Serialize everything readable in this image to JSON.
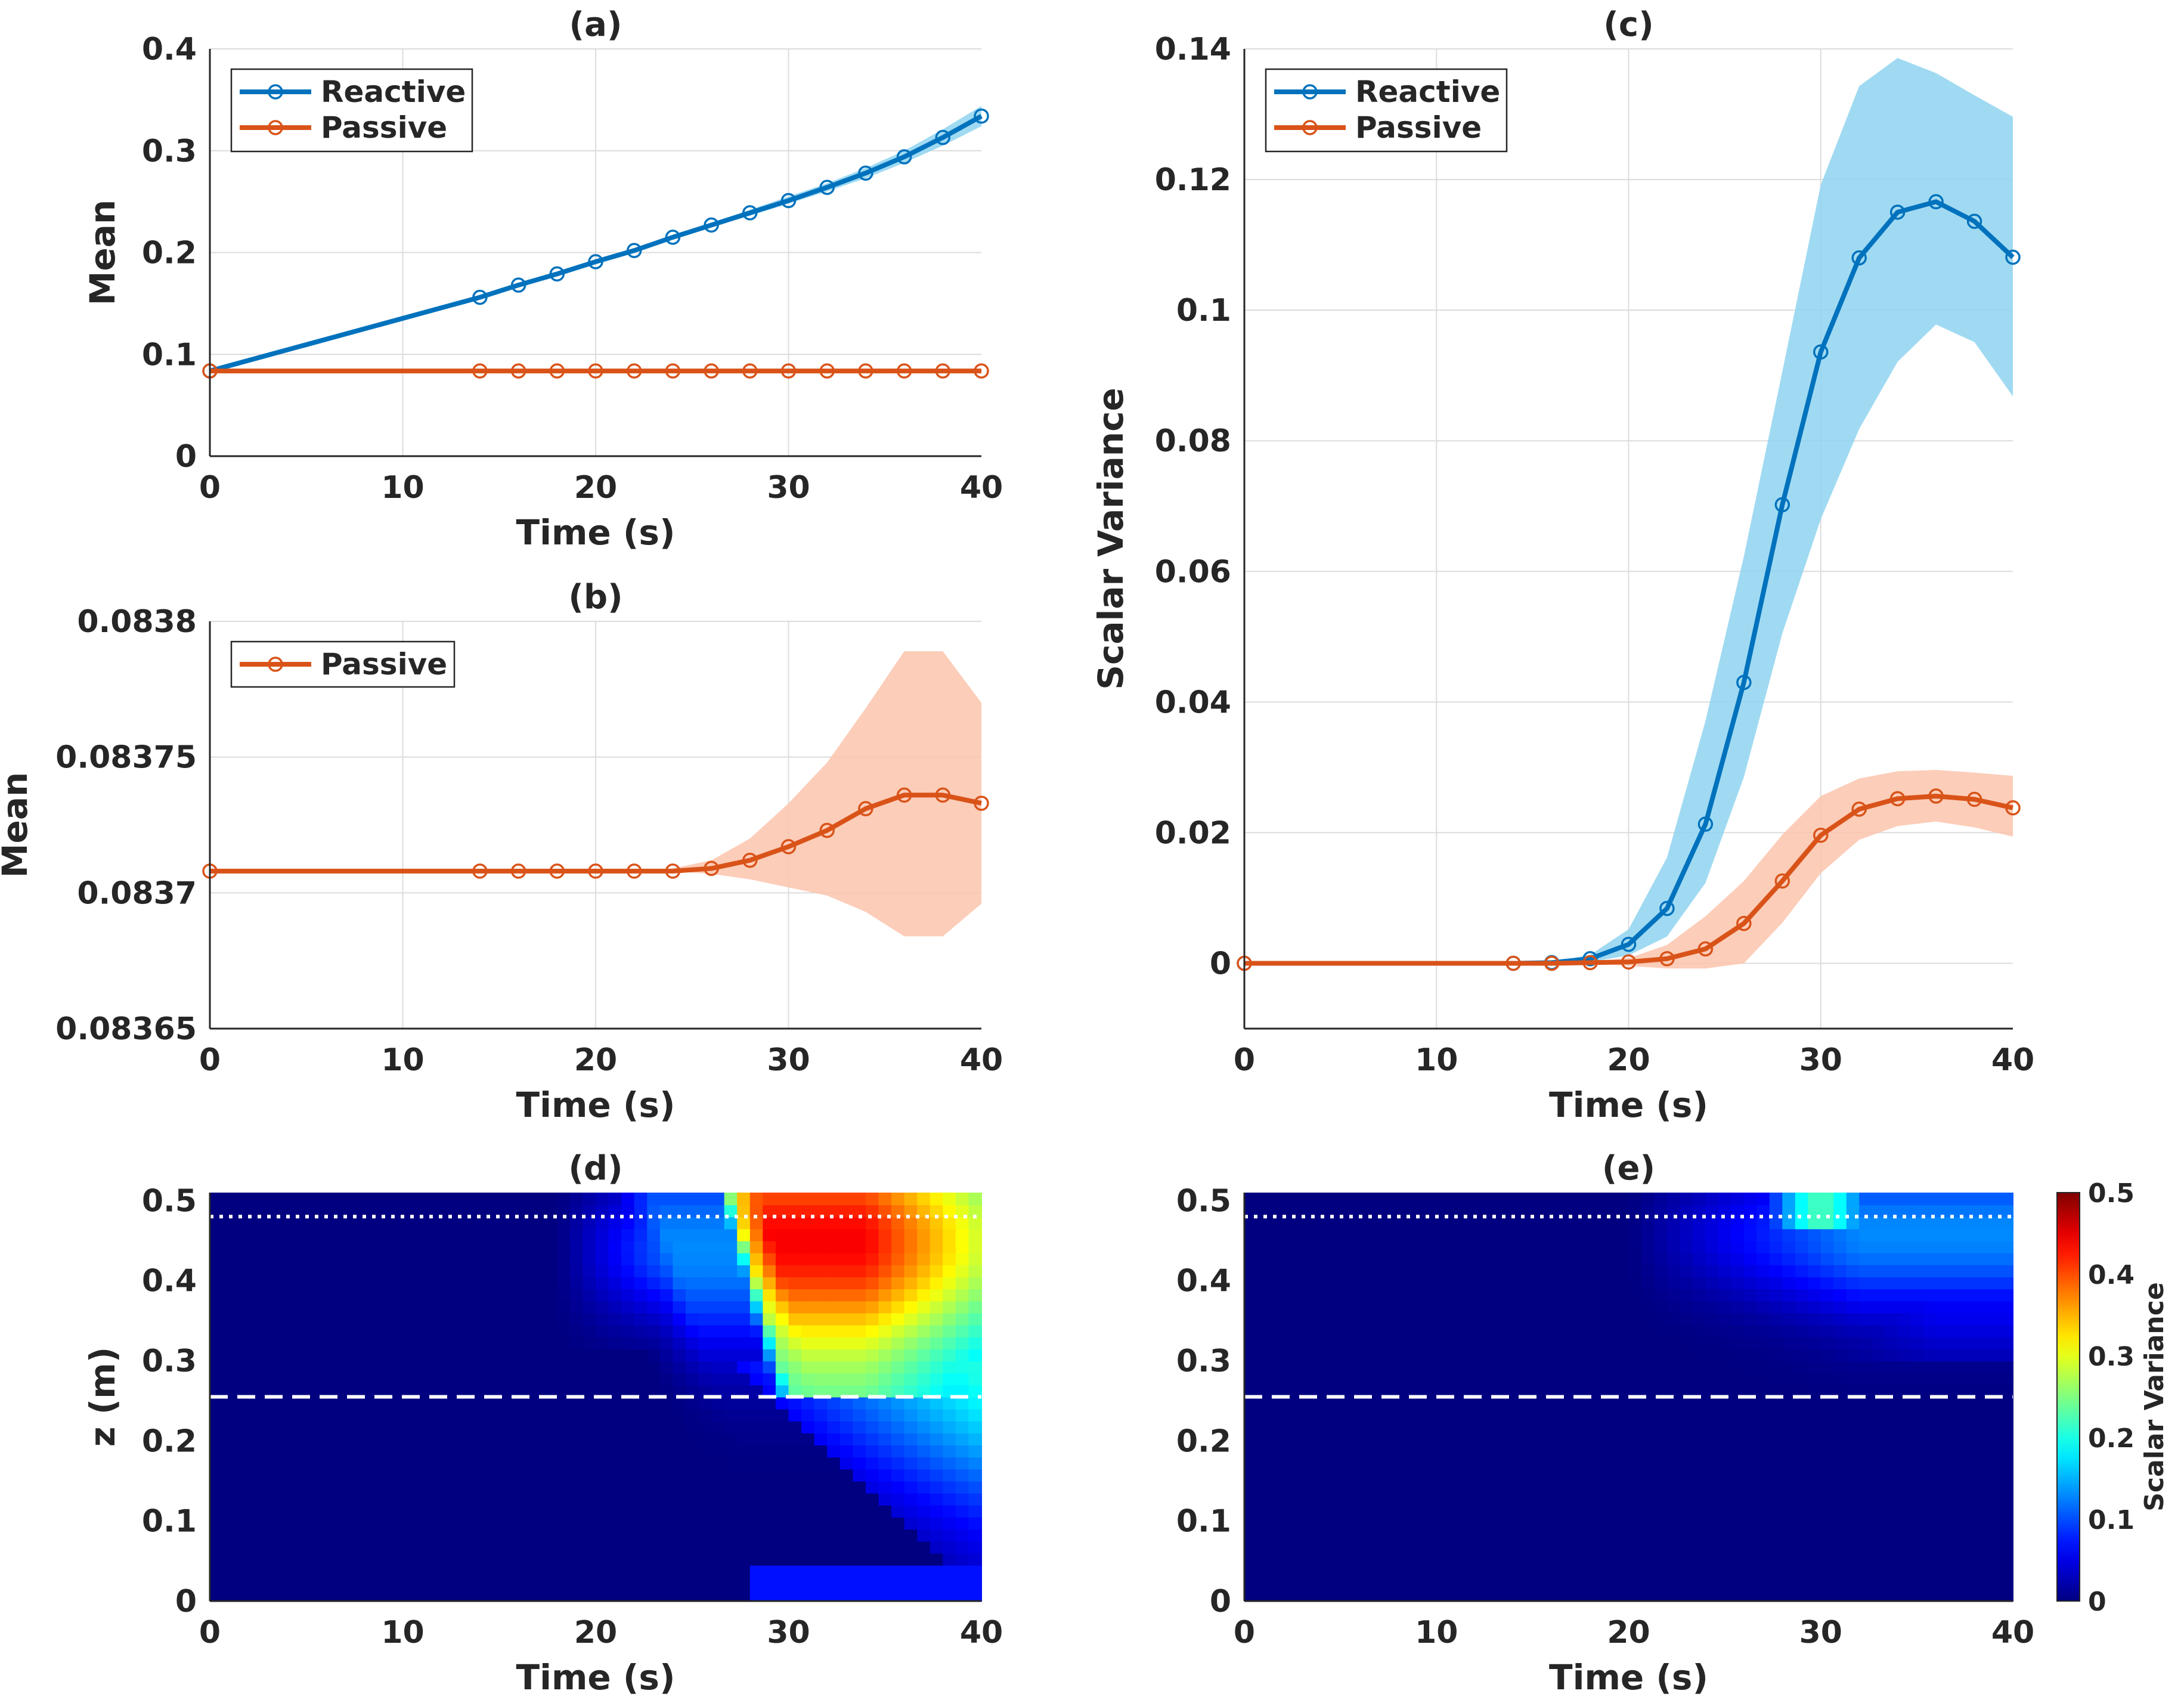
{
  "chart_data": [
    {
      "id": "a",
      "type": "line",
      "title": "(a)",
      "xlabel": "Time (s)",
      "ylabel": "Mean",
      "xlim": [
        0,
        40
      ],
      "ylim": [
        0,
        0.4
      ],
      "xticks": [
        0,
        10,
        20,
        30,
        40
      ],
      "xticklabels": [
        "0",
        "10",
        "20",
        "30",
        "40"
      ],
      "yticks": [
        0,
        0.1,
        0.2,
        0.3,
        0.4
      ],
      "yticklabels": [
        "0",
        "0.1",
        "0.2",
        "0.3",
        "0.4"
      ],
      "grid": true,
      "legend": "top-left",
      "series": [
        {
          "name": "Reactive",
          "color": "#0072BD",
          "x": [
            0,
            14,
            16,
            18,
            20,
            22,
            24,
            26,
            28,
            30,
            32,
            34,
            36,
            38,
            40
          ],
          "values": [
            0.0837,
            0.156,
            0.168,
            0.179,
            0.191,
            0.202,
            0.215,
            0.227,
            0.239,
            0.251,
            0.264,
            0.278,
            0.294,
            0.313,
            0.334
          ],
          "band_lower": [
            0.0837,
            0.156,
            0.168,
            0.179,
            0.19,
            0.201,
            0.213,
            0.225,
            0.236,
            0.248,
            0.26,
            0.273,
            0.288,
            0.305,
            0.324
          ],
          "band_upper": [
            0.0837,
            0.156,
            0.168,
            0.18,
            0.192,
            0.204,
            0.217,
            0.229,
            0.242,
            0.255,
            0.268,
            0.283,
            0.3,
            0.321,
            0.344
          ],
          "band_color": "#8fd3f0",
          "markers": [
            0,
            14,
            16,
            18,
            20,
            22,
            24,
            26,
            28,
            30,
            32,
            34,
            36,
            38,
            40
          ]
        },
        {
          "name": "Passive",
          "color": "#D95319",
          "x": [
            0,
            14,
            16,
            18,
            20,
            22,
            24,
            26,
            28,
            30,
            32,
            34,
            36,
            38,
            40
          ],
          "values": [
            0.0837,
            0.0837,
            0.0837,
            0.0837,
            0.0837,
            0.0837,
            0.0837,
            0.0837,
            0.0837,
            0.0837,
            0.0837,
            0.0837,
            0.0837,
            0.0837,
            0.0837
          ],
          "markers": [
            0,
            14,
            16,
            18,
            20,
            22,
            24,
            26,
            28,
            30,
            32,
            34,
            36,
            38,
            40
          ]
        }
      ]
    },
    {
      "id": "b",
      "type": "line",
      "title": "(b)",
      "xlabel": "Time (s)",
      "ylabel": "Mean",
      "xlim": [
        0,
        40
      ],
      "ylim": [
        0.08365,
        0.0838
      ],
      "xticks": [
        0,
        10,
        20,
        30,
        40
      ],
      "xticklabels": [
        "0",
        "10",
        "20",
        "30",
        "40"
      ],
      "yticks": [
        0.08365,
        0.0837,
        0.08375,
        0.0838
      ],
      "yticklabels": [
        "0.08365",
        "0.0837",
        "0.08375",
        "0.0838"
      ],
      "grid": true,
      "legend": "top-left",
      "series": [
        {
          "name": "Passive",
          "color": "#D95319",
          "x": [
            0,
            14,
            16,
            18,
            20,
            22,
            24,
            26,
            28,
            30,
            32,
            34,
            36,
            38,
            40
          ],
          "values": [
            0.083708,
            0.083708,
            0.083708,
            0.083708,
            0.083708,
            0.083708,
            0.083708,
            0.083709,
            0.083712,
            0.083717,
            0.083723,
            0.083731,
            0.083736,
            0.083736,
            0.083733
          ],
          "band_lower": [
            0.083708,
            0.083708,
            0.083708,
            0.083708,
            0.083708,
            0.083708,
            0.083708,
            0.083707,
            0.083705,
            0.083702,
            0.083699,
            0.083693,
            0.083684,
            0.083684,
            0.083696
          ],
          "band_upper": [
            0.083708,
            0.083708,
            0.083708,
            0.083708,
            0.083708,
            0.083708,
            0.083709,
            0.083712,
            0.08372,
            0.083733,
            0.083748,
            0.083768,
            0.083789,
            0.083789,
            0.08377
          ],
          "band_color": "#fcc4ad",
          "markers": [
            0,
            14,
            16,
            18,
            20,
            22,
            24,
            26,
            28,
            30,
            32,
            34,
            36,
            38,
            40
          ]
        }
      ]
    },
    {
      "id": "c",
      "type": "line",
      "title": "(c)",
      "xlabel": "Time (s)",
      "ylabel": "Scalar Variance",
      "xlim": [
        0,
        40
      ],
      "ylim": [
        -0.01,
        0.14
      ],
      "xticks": [
        0,
        10,
        20,
        30,
        40
      ],
      "xticklabels": [
        "0",
        "10",
        "20",
        "30",
        "40"
      ],
      "yticks": [
        0,
        0.02,
        0.04,
        0.06,
        0.08,
        0.1,
        0.12,
        0.14
      ],
      "yticklabels": [
        "0",
        "0.02",
        "0.04",
        "0.06",
        "0.08",
        "0.1",
        "0.12",
        "0.14"
      ],
      "grid": true,
      "legend": "top-left",
      "series": [
        {
          "name": "Reactive",
          "color": "#0072BD",
          "x": [
            0,
            14,
            16,
            18,
            20,
            22,
            24,
            26,
            28,
            30,
            32,
            34,
            36,
            38,
            40
          ],
          "values": [
            0,
            0,
            0.0001,
            0.0007,
            0.0029,
            0.0084,
            0.0213,
            0.043,
            0.0702,
            0.0936,
            0.108,
            0.115,
            0.1166,
            0.1136,
            0.1081
          ],
          "band_lower": [
            0,
            0,
            0,
            0.0002,
            0.0012,
            0.0041,
            0.0123,
            0.0285,
            0.0505,
            0.068,
            0.0818,
            0.0921,
            0.0978,
            0.0951,
            0.0868
          ],
          "band_upper": [
            0,
            0,
            0.0002,
            0.0013,
            0.0052,
            0.0162,
            0.0371,
            0.0623,
            0.0906,
            0.1192,
            0.1343,
            0.1386,
            0.1363,
            0.1329,
            0.1296
          ],
          "band_color": "#8fd3f0",
          "markers": [
            0,
            14,
            16,
            18,
            20,
            22,
            24,
            26,
            28,
            30,
            32,
            34,
            36,
            38,
            40
          ]
        },
        {
          "name": "Passive",
          "color": "#D95319",
          "x": [
            0,
            14,
            16,
            18,
            20,
            22,
            24,
            26,
            28,
            30,
            32,
            34,
            36,
            38,
            40
          ],
          "values": [
            0,
            0,
            0,
            0.0001,
            0.0002,
            0.0007,
            0.0022,
            0.0061,
            0.0126,
            0.0196,
            0.0236,
            0.0252,
            0.0256,
            0.0251,
            0.0238
          ],
          "band_lower": [
            0,
            0,
            0,
            0,
            -0.0004,
            -0.0008,
            -0.0008,
            0,
            0.0062,
            0.0138,
            0.0189,
            0.021,
            0.0217,
            0.0208,
            0.0194
          ],
          "band_upper": [
            0,
            0,
            0,
            0.0003,
            0.0008,
            0.0028,
            0.0072,
            0.0126,
            0.0197,
            0.0256,
            0.0283,
            0.0294,
            0.0296,
            0.0292,
            0.0287
          ],
          "band_color": "#fcc4ad",
          "markers": [
            0,
            14,
            16,
            18,
            20,
            22,
            24,
            26,
            28,
            30,
            32,
            34,
            36,
            38,
            40
          ]
        }
      ]
    },
    {
      "id": "d",
      "type": "heatmap",
      "title": "(d)",
      "xlabel": "Time (s)",
      "ylabel": "z (m)",
      "xlim": [
        0,
        40
      ],
      "ylim": [
        0,
        0.51
      ],
      "xticks": [
        0,
        10,
        20,
        30,
        40
      ],
      "xticklabels": [
        "0",
        "10",
        "20",
        "30",
        "40"
      ],
      "yticks": [
        0,
        0.1,
        0.2,
        0.3,
        0.4,
        0.5
      ],
      "yticklabels": [
        "0",
        "0.1",
        "0.2",
        "0.3",
        "0.4",
        "0.5"
      ],
      "colormap": "jet",
      "clim": [
        0,
        0.5
      ],
      "case": "reactive",
      "reference_lines": [
        {
          "z": 0.48,
          "style": "dotted",
          "color": "#ffffff"
        },
        {
          "z": 0.255,
          "style": "dashed",
          "color": "#ffffff"
        }
      ]
    },
    {
      "id": "e",
      "type": "heatmap",
      "title": "(e)",
      "xlabel": "Time (s)",
      "ylabel": "",
      "xlim": [
        0,
        40
      ],
      "ylim": [
        0,
        0.51
      ],
      "xticks": [
        0,
        10,
        20,
        30,
        40
      ],
      "xticklabels": [
        "0",
        "10",
        "20",
        "30",
        "40"
      ],
      "yticks": [
        0,
        0.1,
        0.2,
        0.3,
        0.4,
        0.5
      ],
      "yticklabels": [
        "0",
        "0.1",
        "0.2",
        "0.3",
        "0.4",
        "0.5"
      ],
      "colormap": "jet",
      "clim": [
        0,
        0.5
      ],
      "case": "passive",
      "reference_lines": [
        {
          "z": 0.48,
          "style": "dotted",
          "color": "#ffffff"
        },
        {
          "z": 0.255,
          "style": "dashed",
          "color": "#ffffff"
        }
      ],
      "colorbar": {
        "label": "Scalar Variance",
        "ticks": [
          0,
          0.1,
          0.2,
          0.3,
          0.4,
          0.5
        ],
        "ticklabels": [
          "0",
          "0.1",
          "0.2",
          "0.3",
          "0.4",
          "0.5"
        ]
      }
    }
  ]
}
